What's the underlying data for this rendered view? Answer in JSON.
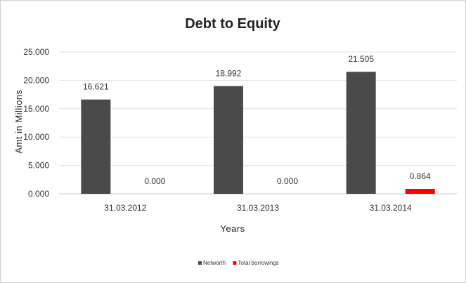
{
  "chart_data": {
    "type": "bar",
    "title": "Debt to Equity",
    "xlabel": "Years",
    "ylabel": "Amt in Millions",
    "categories": [
      "31.03.2012",
      "31.03.2013",
      "31.03.2014"
    ],
    "y_ticks": [
      "0.000",
      "5.000",
      "10.000",
      "15.000",
      "20.000",
      "25.000"
    ],
    "ylim": [
      0,
      25
    ],
    "grid": true,
    "legend_position": "bottom",
    "series": [
      {
        "name": "Networth",
        "color": "#4a4a4a",
        "values": [
          16.621,
          18.992,
          21.505
        ],
        "labels": [
          "16.621",
          "18.992",
          "21.505"
        ]
      },
      {
        "name": "Total borrowings",
        "color": "#ff0000",
        "values": [
          0.0,
          0.0,
          0.864
        ],
        "labels": [
          "0.000",
          "0.000",
          "0.864"
        ]
      }
    ]
  }
}
